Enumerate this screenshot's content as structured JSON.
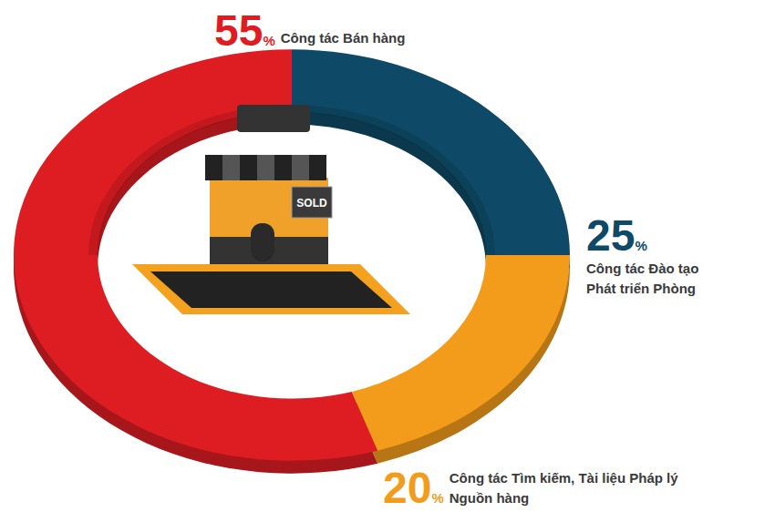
{
  "chart_data": {
    "type": "pie",
    "categories": [
      "Công tác Bán hàng",
      "Công tác Đào tạo Phát triển Phòng",
      "Công tác Tìm kiếm, Tài liệu Pháp lý Nguồn hàng"
    ],
    "values": [
      55,
      25,
      20
    ],
    "value_labels": [
      "55%",
      "25%",
      "20%"
    ],
    "colors": [
      "#de1d23",
      "#0e4a67",
      "#f39c1b"
    ],
    "data_labels": true,
    "center_icon_sign": "SOLD"
  }
}
